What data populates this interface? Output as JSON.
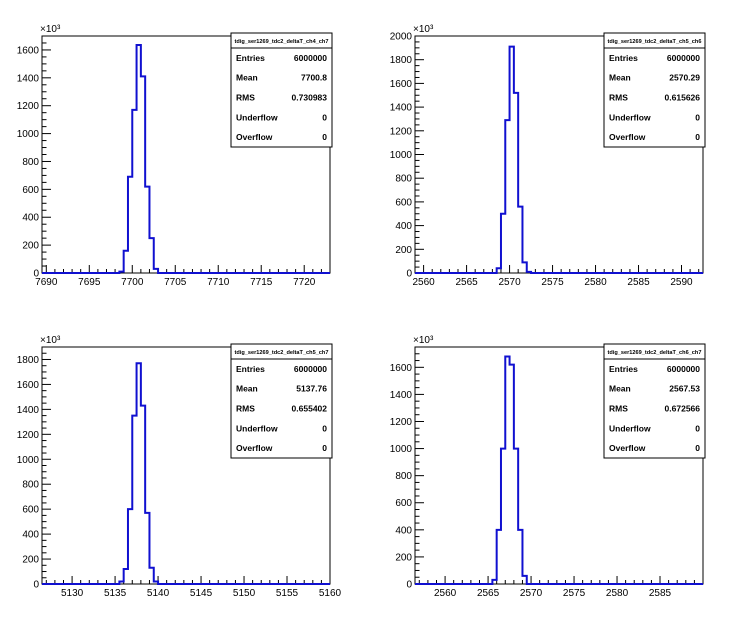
{
  "chart_data": [
    {
      "type": "bar",
      "title": "",
      "exponent_label": "×10³",
      "xlim": [
        7689.5,
        7723
      ],
      "ylim": [
        0,
        1700
      ],
      "x_ticks": [
        "7690",
        "7695",
        "7700",
        "7705",
        "7710",
        "7715",
        "7720"
      ],
      "x_tick_values": [
        7690,
        7695,
        7700,
        7705,
        7710,
        7715,
        7720
      ],
      "y_ticks": [
        "0",
        "200",
        "400",
        "600",
        "800",
        "1000",
        "1200",
        "1400",
        "1600"
      ],
      "y_tick_values": [
        0,
        200,
        400,
        600,
        800,
        1000,
        1200,
        1400,
        1600
      ],
      "bin_width": 0.5,
      "hist_start": 7689.5,
      "hist_end": 7723,
      "bins": [
        {
          "x": 7698.5,
          "y": 10
        },
        {
          "x": 7699.0,
          "y": 160
        },
        {
          "x": 7699.5,
          "y": 690
        },
        {
          "x": 7700.0,
          "y": 1170
        },
        {
          "x": 7700.5,
          "y": 1635
        },
        {
          "x": 7701.0,
          "y": 1410
        },
        {
          "x": 7701.5,
          "y": 620
        },
        {
          "x": 7702.0,
          "y": 250
        },
        {
          "x": 7702.5,
          "y": 30
        }
      ],
      "stats": {
        "name": "tdig_ser1269_tdc2_deltaT_ch4_ch7",
        "rows": [
          {
            "label": "Entries",
            "value": "6000000"
          },
          {
            "label": "Mean",
            "value": "7700.8"
          },
          {
            "label": "RMS",
            "value": "0.730983"
          },
          {
            "label": "Underflow",
            "value": "0"
          },
          {
            "label": "Overflow",
            "value": "0"
          }
        ]
      },
      "line_color": "#1010d0"
    },
    {
      "type": "bar",
      "title": "",
      "exponent_label": "×10³",
      "xlim": [
        2559,
        2592.5
      ],
      "ylim": [
        0,
        2000
      ],
      "x_ticks": [
        "2560",
        "2565",
        "2570",
        "2575",
        "2580",
        "2585",
        "2590"
      ],
      "x_tick_values": [
        2560,
        2565,
        2570,
        2575,
        2580,
        2585,
        2590
      ],
      "y_ticks": [
        "0",
        "200",
        "400",
        "600",
        "800",
        "1000",
        "1200",
        "1400",
        "1600",
        "1800",
        "2000"
      ],
      "y_tick_values": [
        0,
        200,
        400,
        600,
        800,
        1000,
        1200,
        1400,
        1600,
        1800,
        2000
      ],
      "bin_width": 0.5,
      "hist_start": 2559,
      "hist_end": 2592.5,
      "bins": [
        {
          "x": 2568.5,
          "y": 40
        },
        {
          "x": 2569.0,
          "y": 500
        },
        {
          "x": 2569.5,
          "y": 1290
        },
        {
          "x": 2570.0,
          "y": 1910
        },
        {
          "x": 2570.5,
          "y": 1520
        },
        {
          "x": 2571.0,
          "y": 560
        },
        {
          "x": 2571.5,
          "y": 90
        },
        {
          "x": 2572.0,
          "y": 10
        }
      ],
      "stats": {
        "name": "tdig_ser1269_tdc2_deltaT_ch5_ch6",
        "rows": [
          {
            "label": "Entries",
            "value": "6000000"
          },
          {
            "label": "Mean",
            "value": "2570.29"
          },
          {
            "label": "RMS",
            "value": "0.615626"
          },
          {
            "label": "Underflow",
            "value": "0"
          },
          {
            "label": "Overflow",
            "value": "0"
          }
        ]
      },
      "line_color": "#1010d0"
    },
    {
      "type": "bar",
      "title": "",
      "exponent_label": "×10³",
      "xlim": [
        5126.5,
        5160
      ],
      "ylim": [
        0,
        1900
      ],
      "x_ticks": [
        "5130",
        "5135",
        "5140",
        "5145",
        "5150",
        "5155",
        "5160"
      ],
      "x_tick_values": [
        5130,
        5135,
        5140,
        5145,
        5150,
        5155,
        5160
      ],
      "y_ticks": [
        "0",
        "200",
        "400",
        "600",
        "800",
        "1000",
        "1200",
        "1400",
        "1600",
        "1800"
      ],
      "y_tick_values": [
        0,
        200,
        400,
        600,
        800,
        1000,
        1200,
        1400,
        1600,
        1800
      ],
      "bin_width": 0.5,
      "hist_start": 5126.5,
      "hist_end": 5160,
      "bins": [
        {
          "x": 5135.5,
          "y": 20
        },
        {
          "x": 5136.0,
          "y": 120
        },
        {
          "x": 5136.5,
          "y": 600
        },
        {
          "x": 5137.0,
          "y": 1350
        },
        {
          "x": 5137.5,
          "y": 1770
        },
        {
          "x": 5138.0,
          "y": 1430
        },
        {
          "x": 5138.5,
          "y": 570
        },
        {
          "x": 5139.0,
          "y": 130
        },
        {
          "x": 5139.5,
          "y": 20
        }
      ],
      "stats": {
        "name": "tdig_ser1269_tdc2_deltaT_ch5_ch7",
        "rows": [
          {
            "label": "Entries",
            "value": "6000000"
          },
          {
            "label": "Mean",
            "value": "5137.76"
          },
          {
            "label": "RMS",
            "value": "0.655402"
          },
          {
            "label": "Underflow",
            "value": "0"
          },
          {
            "label": "Overflow",
            "value": "0"
          }
        ]
      },
      "line_color": "#1010d0"
    },
    {
      "type": "bar",
      "title": "",
      "exponent_label": "×10³",
      "xlim": [
        2556.5,
        2590
      ],
      "ylim": [
        0,
        1750
      ],
      "x_ticks": [
        "2560",
        "2565",
        "2570",
        "2575",
        "2580",
        "2585"
      ],
      "x_tick_values": [
        2560,
        2565,
        2570,
        2575,
        2580,
        2585
      ],
      "y_ticks": [
        "0",
        "200",
        "400",
        "600",
        "800",
        "1000",
        "1200",
        "1400",
        "1600"
      ],
      "y_tick_values": [
        0,
        200,
        400,
        600,
        800,
        1000,
        1200,
        1400,
        1600
      ],
      "bin_width": 0.5,
      "hist_start": 2556.5,
      "hist_end": 2590,
      "bins": [
        {
          "x": 2565.5,
          "y": 30
        },
        {
          "x": 2566.0,
          "y": 400
        },
        {
          "x": 2566.5,
          "y": 1000
        },
        {
          "x": 2567.0,
          "y": 1680
        },
        {
          "x": 2567.5,
          "y": 1620
        },
        {
          "x": 2568.0,
          "y": 1000
        },
        {
          "x": 2568.5,
          "y": 400
        },
        {
          "x": 2569.0,
          "y": 60
        }
      ],
      "stats": {
        "name": "tdig_ser1269_tdc2_deltaT_ch6_ch7",
        "rows": [
          {
            "label": "Entries",
            "value": "6000000"
          },
          {
            "label": "Mean",
            "value": "2567.53"
          },
          {
            "label": "RMS",
            "value": "0.672566"
          },
          {
            "label": "Underflow",
            "value": "0"
          },
          {
            "label": "Overflow",
            "value": "0"
          }
        ]
      },
      "line_color": "#1010d0"
    }
  ]
}
